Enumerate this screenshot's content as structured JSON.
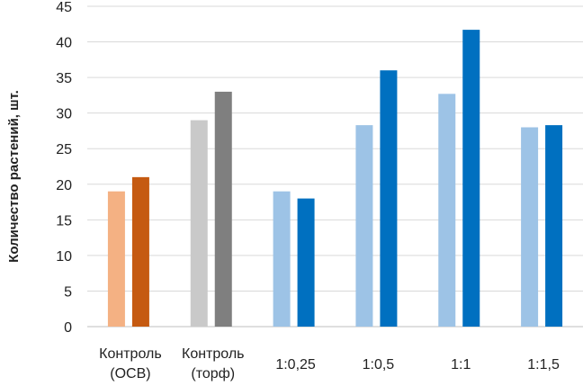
{
  "chart_data": {
    "type": "bar",
    "title": "",
    "xlabel": "",
    "ylabel": "Количество растений, шт.",
    "ylim": [
      0,
      45
    ],
    "ytick_step": 5,
    "grid": true,
    "legend": "none",
    "categories": [
      [
        "Контроль",
        "(ОСВ)"
      ],
      [
        "Контроль",
        "(торф)"
      ],
      [
        "1:0,25"
      ],
      [
        "1:0,5"
      ],
      [
        "1:1"
      ],
      [
        "1:1,5"
      ]
    ],
    "bars": [
      {
        "values": [
          19,
          29,
          19,
          28.3,
          32.7,
          28
        ],
        "colors": [
          "#f4b183",
          "#c9c9c9",
          "#9dc3e6",
          "#9dc3e6",
          "#9dc3e6",
          "#9dc3e6"
        ]
      },
      {
        "values": [
          21,
          33,
          18,
          36,
          41.7,
          28.3
        ],
        "colors": [
          "#c55a11",
          "#7f7f7f",
          "#0070c0",
          "#0070c0",
          "#0070c0",
          "#0070c0"
        ]
      }
    ]
  }
}
